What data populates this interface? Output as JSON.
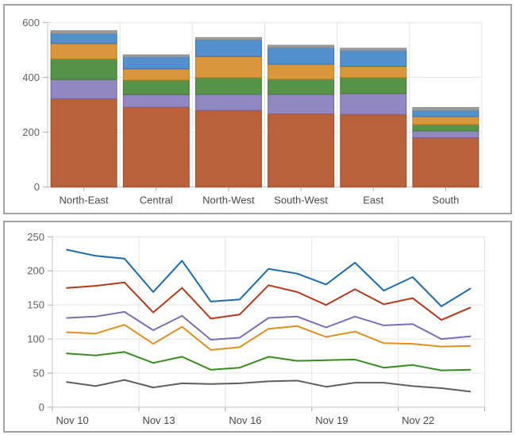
{
  "page": {
    "background": "#ffffff",
    "panel_border": "#a3a3a3"
  },
  "style": {
    "grid_color": "#e4e4e4",
    "axis_color": "#c6c6c6",
    "tick_color": "#ababab",
    "y_label_color": "#636363",
    "x_label_color": "#4a4a4e",
    "label_font_size": 13
  },
  "chart_data": [
    {
      "type": "bar",
      "stacked": true,
      "title": "",
      "xlabel": "",
      "ylabel": "",
      "legend": "none",
      "grid": true,
      "ylim": [
        0,
        600
      ],
      "yticks": [
        0,
        200,
        400,
        600
      ],
      "categories": [
        "North-East",
        "Central",
        "North-West",
        "South-West",
        "East",
        "South"
      ],
      "series": [
        {
          "name": "series-rust",
          "color": "#b9613a",
          "stroke": "#a04b22",
          "values": [
            322,
            291,
            280,
            267,
            265,
            180
          ]
        },
        {
          "name": "series-purple",
          "color": "#9187c3",
          "stroke": "#7265ab",
          "values": [
            70,
            46,
            58,
            71,
            76,
            25
          ]
        },
        {
          "name": "series-green",
          "color": "#579347",
          "stroke": "#3f7a31",
          "values": [
            75,
            53,
            61,
            55,
            58,
            23
          ]
        },
        {
          "name": "series-orange",
          "color": "#d9973b",
          "stroke": "#bd7d21",
          "values": [
            56,
            41,
            77,
            55,
            41,
            29
          ]
        },
        {
          "name": "series-blue",
          "color": "#5490cd",
          "stroke": "#3570b2",
          "values": [
            37,
            43,
            61,
            60,
            57,
            23
          ]
        },
        {
          "name": "series-gray",
          "color": "#9e9e9e",
          "stroke": "#8a8a8a",
          "values": [
            10,
            8,
            8,
            9,
            9,
            10
          ]
        }
      ]
    },
    {
      "type": "line",
      "title": "",
      "xlabel": "",
      "ylabel": "",
      "legend": "none",
      "grid": true,
      "ylim": [
        0,
        250
      ],
      "yticks": [
        0,
        50,
        100,
        150,
        200,
        250
      ],
      "n_points": 15,
      "x_tick_labels": [
        "Nov 10",
        "Nov 13",
        "Nov 16",
        "Nov 19",
        "Nov 22"
      ],
      "x_label_point_indices": [
        0,
        3,
        6,
        9,
        12
      ],
      "x_gridline_every": 3,
      "series": [
        {
          "name": "line-blue",
          "color": "#1c6bac",
          "values": [
            231,
            222,
            218,
            169,
            215,
            155,
            158,
            203,
            196,
            180,
            212,
            171,
            191,
            148,
            174
          ]
        },
        {
          "name": "line-red",
          "color": "#b23a1b",
          "values": [
            175,
            178,
            183,
            139,
            175,
            130,
            136,
            179,
            169,
            150,
            173,
            151,
            160,
            128,
            146
          ]
        },
        {
          "name": "line-purple",
          "color": "#7e6bb9",
          "values": [
            131,
            133,
            140,
            113,
            134,
            99,
            102,
            131,
            133,
            117,
            133,
            120,
            122,
            100,
            104
          ]
        },
        {
          "name": "line-orange",
          "color": "#e18f1e",
          "values": [
            110,
            108,
            121,
            93,
            118,
            84,
            88,
            115,
            119,
            103,
            111,
            94,
            93,
            89,
            90
          ]
        },
        {
          "name": "line-green",
          "color": "#368c1e",
          "values": [
            79,
            76,
            81,
            65,
            74,
            55,
            58,
            74,
            68,
            69,
            70,
            58,
            62,
            54,
            55
          ]
        },
        {
          "name": "line-gray",
          "color": "#5f5f5f",
          "values": [
            37,
            31,
            40,
            29,
            35,
            34,
            35,
            38,
            39,
            30,
            36,
            36,
            31,
            28,
            23
          ]
        }
      ]
    }
  ]
}
